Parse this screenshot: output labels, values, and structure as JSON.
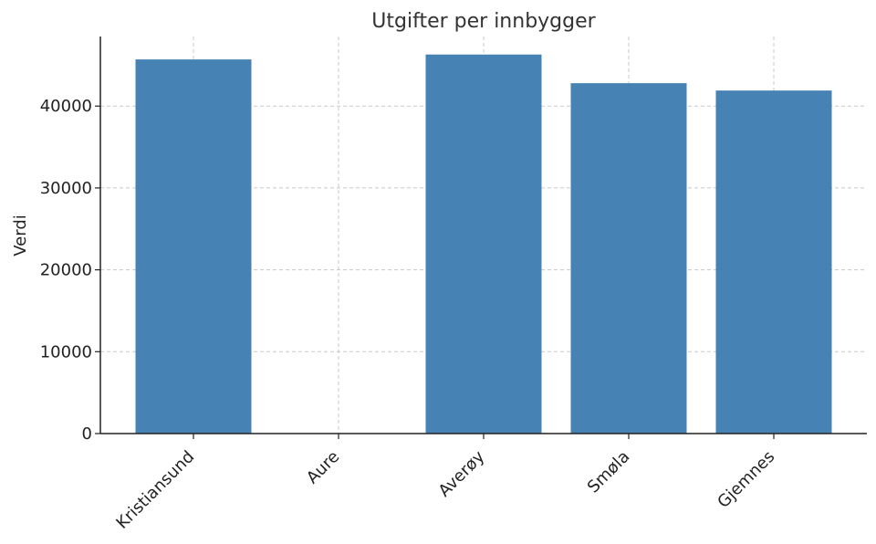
{
  "chart_data": {
    "type": "bar",
    "title": "Utgifter per innbygger",
    "xlabel": "",
    "ylabel": "Verdi",
    "categories": [
      "Kristiansund",
      "Aure",
      "Averøy",
      "Smøla",
      "Gjemnes"
    ],
    "values": [
      45700,
      0,
      46300,
      42800,
      41900
    ],
    "ylim": [
      0,
      48500
    ],
    "yticks": [
      0,
      10000,
      20000,
      30000,
      40000
    ],
    "grid": true,
    "bar_color": "#4682b4"
  }
}
